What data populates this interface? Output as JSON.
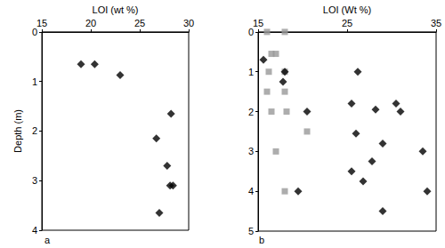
{
  "chart_data": [
    {
      "type": "scatter",
      "x_label": "LOI (wt %)",
      "y_label": "Depth (m)",
      "annotations": [
        "a"
      ],
      "xlim": [
        15,
        30
      ],
      "xticks": [
        15,
        20,
        25,
        30
      ],
      "ylim": [
        0,
        4
      ],
      "yticks": [
        0,
        1,
        2,
        3,
        4
      ],
      "grid": false,
      "series": [
        {
          "color": "#000000",
          "marker": "diamond",
          "x": [
            19.0,
            20.4,
            23.0,
            28.2,
            26.7,
            27.8,
            28.1,
            28.4,
            27.0
          ],
          "y": [
            0.65,
            0.65,
            0.87,
            1.65,
            2.15,
            2.7,
            3.1,
            3.1,
            3.65
          ]
        }
      ]
    },
    {
      "type": "scatter",
      "x_label": "LOI (Wt %)",
      "annotations": [
        "b"
      ],
      "xlim": [
        15,
        35
      ],
      "xticks": [
        15,
        25,
        35
      ],
      "ylim": [
        0,
        5
      ],
      "yticks": [
        0,
        1,
        2,
        3,
        4,
        5
      ],
      "grid": false,
      "series": [
        {
          "color": "#999999",
          "marker": "square",
          "x": [
            16.0,
            18.0,
            16.5,
            17.0,
            16.2,
            18.0,
            16.0,
            18.0,
            16.5,
            18.2,
            20.5,
            17.0,
            18.0
          ],
          "y": [
            0.0,
            0.0,
            0.55,
            0.55,
            1.0,
            1.0,
            1.5,
            1.5,
            2.0,
            2.0,
            2.5,
            3.0,
            4.0
          ]
        },
        {
          "color": "#000000",
          "marker": "diamond",
          "x": [
            15.6,
            18.0,
            26.2,
            17.8,
            30.5,
            25.5,
            28.2,
            31.0,
            20.5,
            26.0,
            29.0,
            33.5,
            27.8,
            25.5,
            26.8,
            19.5,
            34.0,
            29.0
          ],
          "y": [
            0.7,
            1.0,
            1.0,
            1.25,
            1.8,
            1.8,
            1.95,
            2.0,
            2.0,
            2.55,
            2.8,
            3.0,
            3.25,
            3.5,
            3.75,
            4.0,
            4.0,
            4.5
          ]
        }
      ]
    }
  ]
}
